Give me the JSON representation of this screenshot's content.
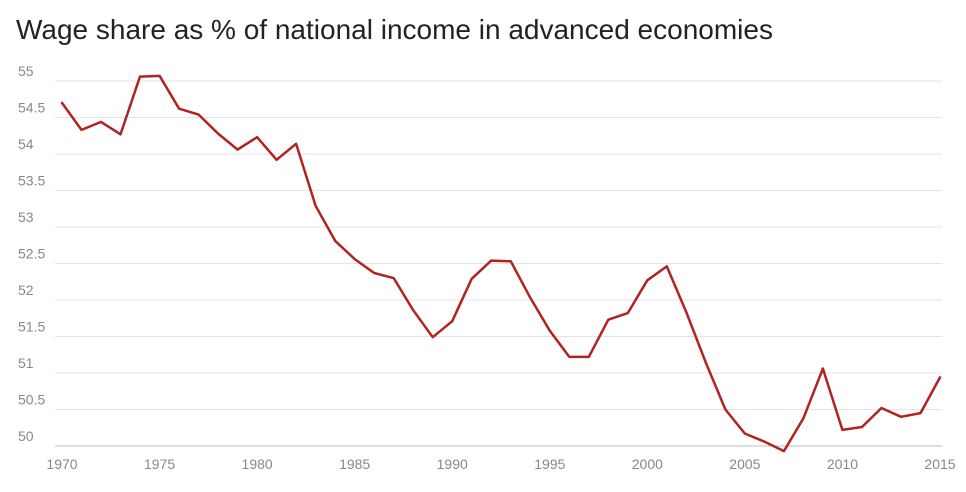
{
  "chart_data": {
    "type": "line",
    "title": "Wage share as % of national income in advanced economies",
    "xlabel": "",
    "ylabel": "",
    "xlim": [
      1970,
      2015
    ],
    "ylim": [
      50,
      55
    ],
    "yticks": [
      50,
      50.5,
      51,
      51.5,
      52,
      52.5,
      53,
      53.5,
      54,
      54.5,
      55
    ],
    "ytick_labels": [
      "50",
      "50.5",
      "51",
      "51.5",
      "52",
      "52.5",
      "53",
      "53.5",
      "54",
      "54.5",
      "55"
    ],
    "xticks": [
      1970,
      1975,
      1980,
      1985,
      1990,
      1995,
      2000,
      2005,
      2010,
      2015
    ],
    "xtick_labels": [
      "1970",
      "1975",
      "1980",
      "1985",
      "1990",
      "1995",
      "2000",
      "2005",
      "2010",
      "2015"
    ],
    "grid": true,
    "color": "#b22222",
    "x": [
      1970,
      1971,
      1972,
      1973,
      1974,
      1975,
      1976,
      1977,
      1978,
      1979,
      1980,
      1981,
      1982,
      1983,
      1984,
      1985,
      1986,
      1987,
      1988,
      1989,
      1990,
      1991,
      1992,
      1993,
      1994,
      1995,
      1996,
      1997,
      1998,
      1999,
      2000,
      2001,
      2002,
      2003,
      2004,
      2005,
      2006,
      2007,
      2008,
      2009,
      2010,
      2011,
      2012,
      2013,
      2014,
      2015
    ],
    "values": [
      54.7,
      54.33,
      54.44,
      54.27,
      55.06,
      55.07,
      54.62,
      54.54,
      54.28,
      54.06,
      54.23,
      53.92,
      54.14,
      53.29,
      52.81,
      52.56,
      52.37,
      52.3,
      51.86,
      51.49,
      51.71,
      52.29,
      52.54,
      52.53,
      52.03,
      51.58,
      51.22,
      51.22,
      51.73,
      51.82,
      52.27,
      52.46,
      51.83,
      51.14,
      50.5,
      50.17,
      50.06,
      49.93,
      50.38,
      51.06,
      50.22,
      50.26,
      50.52,
      50.4,
      50.45,
      50.94
    ]
  }
}
